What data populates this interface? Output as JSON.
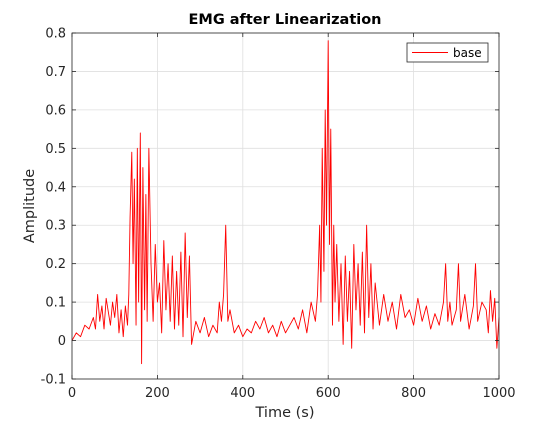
{
  "colors": {
    "series": "#ff0000",
    "grid": "#dfdfdf",
    "axis": "#262626",
    "background": "#ffffff"
  },
  "chart_data": {
    "type": "line",
    "title": "EMG after Linearization",
    "xlabel": "Time (s)",
    "ylabel": "Amplitude",
    "xlim": [
      0,
      1000
    ],
    "ylim": [
      -0.1,
      0.8
    ],
    "xticks": [
      0,
      200,
      400,
      600,
      800,
      1000
    ],
    "yticks": [
      -0.1,
      0,
      0.1,
      0.2,
      0.3,
      0.4,
      0.5,
      0.6,
      0.7,
      0.8
    ],
    "xtick_labels": [
      "0",
      "200",
      "400",
      "600",
      "800",
      "1000"
    ],
    "ytick_labels": [
      "-0.1",
      "0",
      "0.1",
      "0.2",
      "0.3",
      "0.4",
      "0.5",
      "0.6",
      "0.7",
      "0.8"
    ],
    "grid": true,
    "legend": {
      "entries": [
        "base"
      ],
      "placement": "top-right"
    },
    "series": [
      {
        "name": "base",
        "x": [
          0,
          10,
          20,
          30,
          40,
          50,
          55,
          60,
          65,
          70,
          75,
          80,
          90,
          95,
          100,
          105,
          110,
          115,
          120,
          125,
          130,
          133,
          136,
          140,
          143,
          146,
          150,
          153,
          156,
          160,
          163,
          166,
          170,
          173,
          176,
          180,
          185,
          190,
          195,
          200,
          205,
          210,
          215,
          220,
          225,
          230,
          235,
          240,
          245,
          250,
          255,
          260,
          265,
          270,
          275,
          280,
          290,
          300,
          310,
          320,
          330,
          340,
          345,
          350,
          355,
          360,
          365,
          370,
          380,
          390,
          400,
          410,
          420,
          430,
          440,
          450,
          460,
          470,
          480,
          490,
          500,
          510,
          520,
          530,
          540,
          550,
          560,
          570,
          575,
          580,
          583,
          586,
          590,
          593,
          596,
          600,
          603,
          606,
          610,
          613,
          616,
          620,
          625,
          630,
          635,
          640,
          645,
          650,
          655,
          660,
          665,
          670,
          675,
          680,
          685,
          690,
          695,
          700,
          705,
          710,
          720,
          730,
          740,
          750,
          760,
          770,
          780,
          790,
          800,
          810,
          820,
          830,
          840,
          850,
          860,
          870,
          875,
          880,
          885,
          890,
          900,
          905,
          910,
          920,
          930,
          940,
          945,
          950,
          960,
          970,
          975,
          980,
          985,
          990,
          995,
          1000
        ],
        "y": [
          0,
          0.02,
          0.01,
          0.04,
          0.03,
          0.06,
          0.03,
          0.12,
          0.05,
          0.09,
          0.03,
          0.11,
          0.04,
          0.1,
          0.06,
          0.12,
          0.02,
          0.08,
          0.01,
          0.09,
          0.04,
          0.12,
          0.32,
          0.49,
          0.2,
          0.42,
          0.04,
          0.5,
          0.1,
          0.54,
          -0.06,
          0.45,
          0.08,
          0.38,
          0.05,
          0.5,
          0.2,
          0.05,
          0.25,
          0.1,
          0.15,
          0.02,
          0.26,
          0.08,
          0.2,
          0.05,
          0.22,
          0.03,
          0.18,
          0.04,
          0.23,
          0.01,
          0.28,
          0.06,
          0.22,
          -0.01,
          0.05,
          0.02,
          0.06,
          0.01,
          0.04,
          0.02,
          0.1,
          0.05,
          0.12,
          0.3,
          0.05,
          0.08,
          0.02,
          0.04,
          0.01,
          0.03,
          0.02,
          0.05,
          0.03,
          0.06,
          0.02,
          0.04,
          0.01,
          0.05,
          0.02,
          0.04,
          0.06,
          0.03,
          0.08,
          0.02,
          0.1,
          0.05,
          0.12,
          0.3,
          0.1,
          0.5,
          0.18,
          0.6,
          0.3,
          0.78,
          0.25,
          0.55,
          0.04,
          0.3,
          0.1,
          0.25,
          0.05,
          0.2,
          -0.01,
          0.22,
          0.05,
          0.18,
          -0.02,
          0.25,
          0.08,
          0.2,
          0.04,
          0.23,
          0.02,
          0.3,
          0.06,
          0.2,
          0.03,
          0.15,
          0.04,
          0.12,
          0.05,
          0.1,
          0.03,
          0.12,
          0.06,
          0.08,
          0.04,
          0.11,
          0.05,
          0.09,
          0.03,
          0.07,
          0.04,
          0.1,
          0.2,
          0.05,
          0.1,
          0.04,
          0.08,
          0.2,
          0.05,
          0.12,
          0.03,
          0.09,
          0.2,
          0.05,
          0.1,
          0.08,
          0.02,
          0.13,
          0.05,
          0.11,
          -0.02,
          0.06
        ]
      }
    ]
  }
}
